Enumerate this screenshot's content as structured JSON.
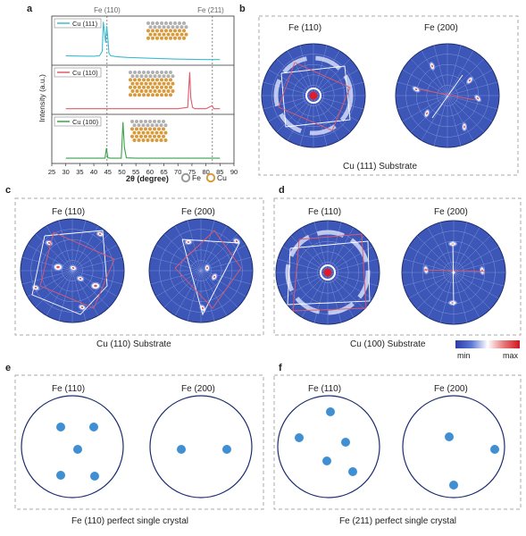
{
  "panel_letters": {
    "a": "a",
    "b": "b",
    "c": "c",
    "d": "d",
    "e": "e",
    "f": "f"
  },
  "chart_data": {
    "type": "line",
    "xlabel": "2θ (degree)",
    "ylabel": "Intensity (a.u.)",
    "xlim": [
      25,
      90
    ],
    "xticks": [
      "25",
      "30",
      "35",
      "40",
      "45",
      "50",
      "55",
      "60",
      "65",
      "70",
      "75",
      "80",
      "85",
      "90"
    ],
    "reference_lines": [
      {
        "label": "Fe (110)",
        "x": 44.7
      },
      {
        "label": "Fe (211)",
        "x": 82.3
      }
    ],
    "series": [
      {
        "name": "Cu (111)",
        "color": "#3bbcd0",
        "x": [
          30,
          38,
          40,
          42,
          43,
          43.4,
          43.8,
          44.2,
          44.6,
          45.0,
          45.4,
          46,
          48,
          52,
          60,
          70,
          80,
          85
        ],
        "y": [
          0.14,
          0.13,
          0.13,
          0.14,
          0.25,
          0.95,
          0.7,
          0.45,
          0.85,
          0.55,
          0.2,
          0.14,
          0.12,
          0.1,
          0.08,
          0.06,
          0.05,
          0.05
        ]
      },
      {
        "name": "Cu (110)",
        "color": "#e05a6a",
        "x": [
          30,
          40,
          44.5,
          45,
          50,
          60,
          70,
          73.5,
          74.2,
          74.6,
          75.2,
          76,
          80,
          82.2,
          82.8,
          83.4,
          85
        ],
        "y": [
          0.05,
          0.05,
          0.05,
          0.05,
          0.05,
          0.05,
          0.05,
          0.08,
          0.92,
          0.3,
          0.08,
          0.05,
          0.05,
          0.12,
          0.05,
          0.05,
          0.05
        ]
      },
      {
        "name": "Cu (100)",
        "color": "#3aa24a",
        "x": [
          30,
          40,
          44.0,
          44.5,
          45.0,
          46,
          49.8,
          50.4,
          50.9,
          51.6,
          55,
          60,
          70,
          80,
          85
        ],
        "y": [
          0.04,
          0.04,
          0.04,
          0.28,
          0.05,
          0.04,
          0.04,
          0.9,
          0.3,
          0.05,
          0.04,
          0.04,
          0.04,
          0.04,
          0.04
        ]
      }
    ]
  },
  "legend": {
    "fe": "Fe",
    "cu": "Cu"
  },
  "colors": {
    "fe_atom": "#b0b0b0",
    "cu_atom": "#d89a3a",
    "spot": "#3f8fd2",
    "polar_bg": "#3d57b8",
    "polar_grid": "#8fa2df"
  },
  "poles": {
    "fe110": "Fe (110)",
    "fe200": "Fe (200)"
  },
  "captions": {
    "b": "Cu (111) Substrate",
    "c": "Cu (110) Substrate",
    "d": "Cu (100) Substrate",
    "e": "Fe (110) perfect single crystal",
    "f": "Fe (211) perfect single crystal"
  },
  "colorbar": {
    "min": "min",
    "max": "max"
  }
}
